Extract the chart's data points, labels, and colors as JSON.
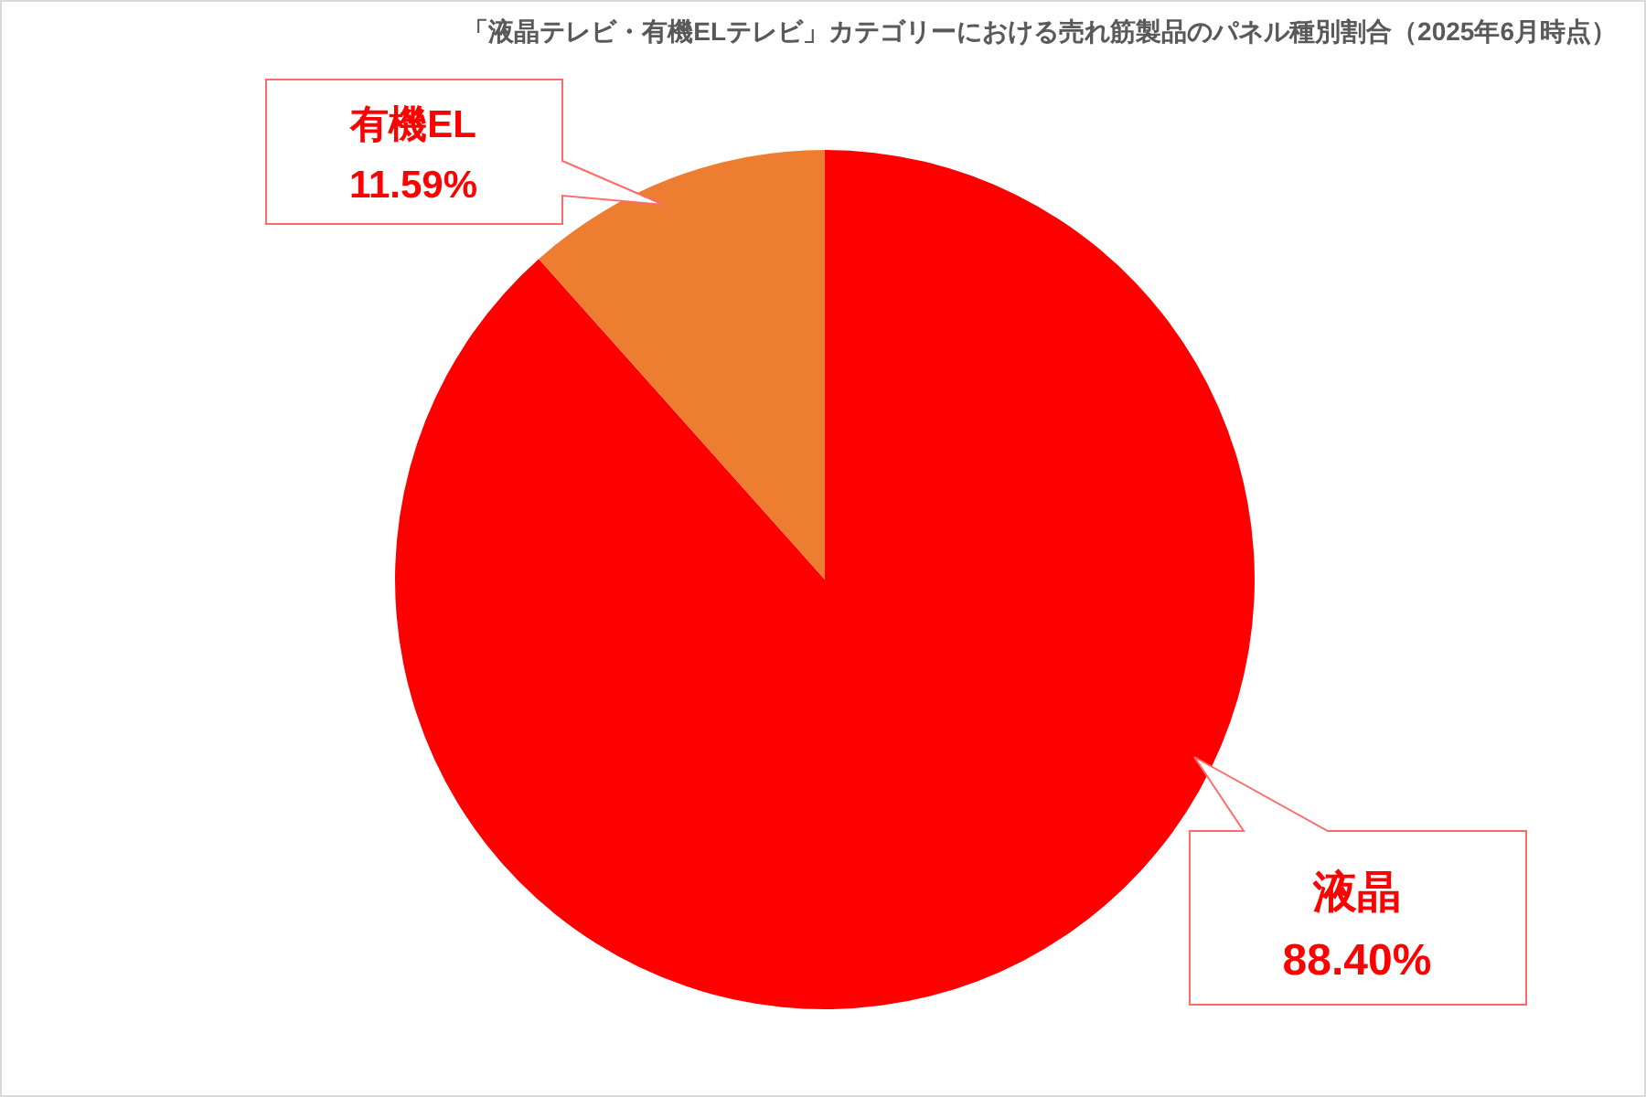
{
  "chart_data": {
    "type": "pie",
    "title": "「液晶テレビ・有機ELテレビ」カテゴリーにおける売れ筋製品のパネル種別割合（2025年6月時点）",
    "categories": [
      "液晶",
      "有機EL"
    ],
    "values": [
      88.4,
      11.59
    ],
    "colors": [
      "#ff0000",
      "#ed7d31"
    ],
    "value_labels": [
      "88.40%",
      "11.59%"
    ]
  }
}
